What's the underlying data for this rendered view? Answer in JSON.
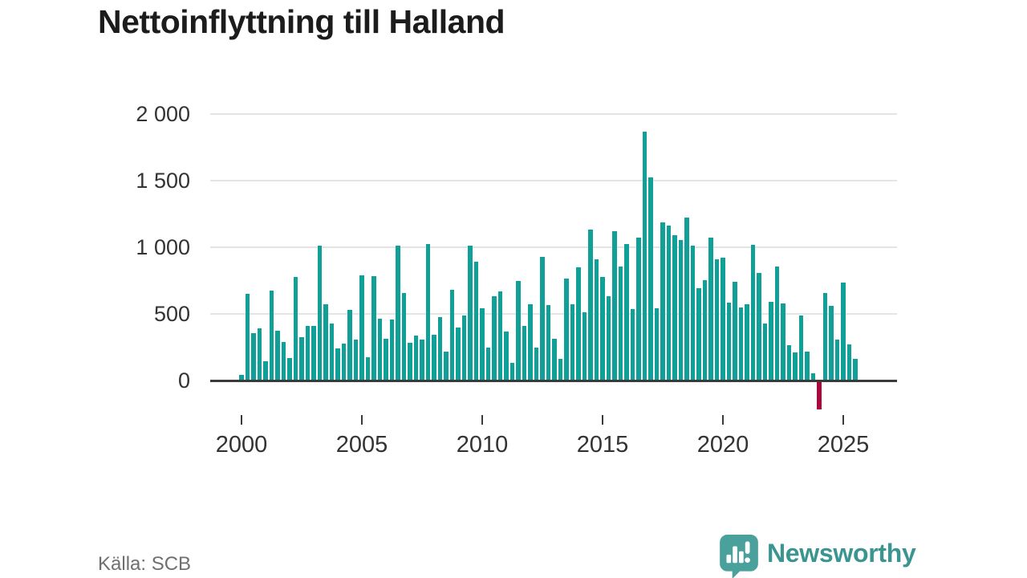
{
  "title": "Nettoinflyttning till Halland",
  "source_label": "Källa: SCB",
  "logo_text": "Newsworthy",
  "colors": {
    "bar": "#10a098",
    "bar_negative": "#a50a3c",
    "axis": "#3b3b3b",
    "gridline": "#e4e4e4",
    "title_text": "#1c1c1c",
    "tick_text": "#333333",
    "source_text": "#6f6f6f",
    "logo": "#3a948f"
  },
  "chart_data": {
    "type": "bar",
    "title": "Nettoinflyttning till Halland",
    "frequency": "quarterly",
    "start_year": 2000,
    "start_quarter": 1,
    "xlabel": "",
    "ylabel": "",
    "ylim": [
      -250,
      2000
    ],
    "grid": "horizontal",
    "legend": "none",
    "y_ticks": [
      {
        "value": 0,
        "label": "0"
      },
      {
        "value": 500,
        "label": "500"
      },
      {
        "value": 1000,
        "label": "1 000"
      },
      {
        "value": 1500,
        "label": "1 500"
      },
      {
        "value": 2000,
        "label": "2 000"
      }
    ],
    "x_ticks": [
      {
        "year": 2000,
        "label": "2000"
      },
      {
        "year": 2005,
        "label": "2005"
      },
      {
        "year": 2010,
        "label": "2010"
      },
      {
        "year": 2015,
        "label": "2015"
      },
      {
        "year": 2020,
        "label": "2020"
      },
      {
        "year": 2025,
        "label": "2025"
      }
    ],
    "values": [
      40,
      650,
      355,
      390,
      145,
      675,
      375,
      290,
      170,
      780,
      325,
      410,
      410,
      1010,
      575,
      430,
      240,
      280,
      530,
      305,
      790,
      175,
      785,
      465,
      315,
      455,
      1010,
      655,
      285,
      335,
      310,
      1025,
      345,
      475,
      215,
      680,
      395,
      485,
      1015,
      890,
      540,
      250,
      635,
      670,
      365,
      135,
      745,
      410,
      575,
      250,
      930,
      565,
      315,
      160,
      765,
      575,
      850,
      515,
      1135,
      910,
      775,
      630,
      1120,
      855,
      1025,
      535,
      1070,
      1870,
      1525,
      540,
      1185,
      1160,
      1090,
      1055,
      1225,
      1010,
      690,
      755,
      1075,
      910,
      920,
      585,
      740,
      550,
      575,
      1020,
      810,
      430,
      590,
      855,
      580,
      265,
      210,
      490,
      215,
      55,
      -205,
      655,
      560,
      305,
      735,
      270,
      165
    ]
  }
}
